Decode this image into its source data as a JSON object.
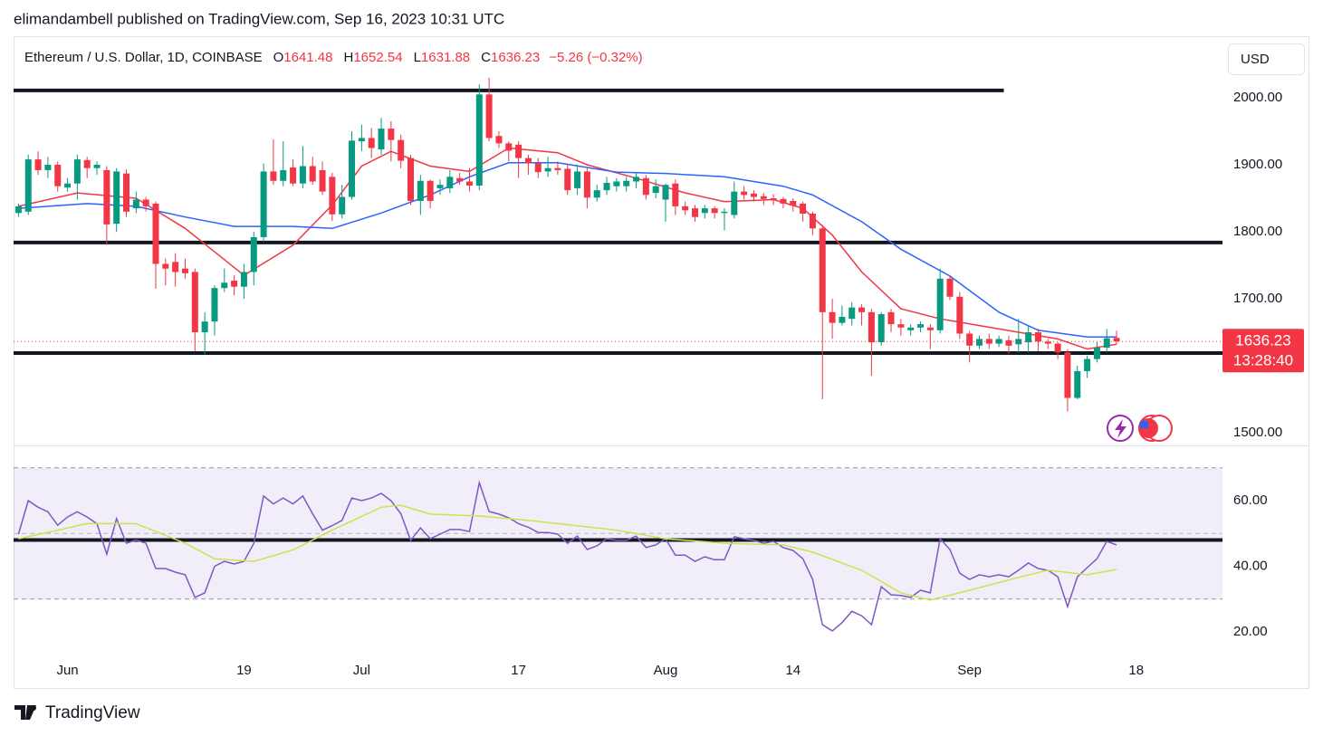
{
  "header": {
    "published": "elimandambell published on TradingView.com, Sep 16, 2023 10:31 UTC"
  },
  "footer": {
    "brand": "TradingView"
  },
  "chart_data": [
    {
      "type": "candlestick",
      "title": "Ethereum / U.S. Dollar, 1D, COINBASE",
      "ohlc_labels": [
        "O",
        "H",
        "L",
        "C"
      ],
      "change_label": "−5.26 (−0.32%)",
      "currency": "USD",
      "countdown": "13:28:40",
      "up_color": "#089981",
      "down_color": "#f23645",
      "open": [
        1828,
        1830,
        1908,
        1892,
        1900,
        1866,
        1872,
        1907,
        1895,
        1892,
        1812,
        1887,
        1835,
        1848,
        1842,
        1752,
        1755,
        1745,
        1740,
        1650,
        1666,
        1716,
        1727,
        1718,
        1740,
        1792,
        1890,
        1876,
        1896,
        1872,
        1898,
        1892,
        1882,
        1826,
        1852,
        1935,
        1940,
        1923,
        1954,
        1937,
        1910,
        1846,
        1876,
        1865,
        1865,
        1880,
        1875,
        1869,
        2005,
        1943,
        1932,
        1930,
        1910,
        1902,
        1890,
        1895,
        1894,
        1865,
        1890,
        1851,
        1862,
        1868,
        1868,
        1875,
        1880,
        1858,
        1848,
        1872,
        1838,
        1835,
        1828,
        1835,
        1828,
        1825,
        1860,
        1857,
        1853,
        1850,
        1849,
        1846,
        1842,
        1827,
        1805,
        1680,
        1664,
        1670,
        1687,
        1680,
        1635,
        1680,
        1662,
        1653,
        1657,
        1657,
        1653,
        1730,
        1703,
        1648,
        1630,
        1640,
        1633,
        1638,
        1632,
        1635,
        1650,
        1636,
        1633,
        1620,
        1552,
        1592,
        1610,
        1627,
        1641.48
      ],
      "high": [
        1842,
        1915,
        1920,
        1912,
        1905,
        1880,
        1915,
        1912,
        1905,
        1898,
        1895,
        1893,
        1860,
        1852,
        1845,
        1760,
        1768,
        1760,
        1745,
        1680,
        1720,
        1745,
        1735,
        1752,
        1800,
        1902,
        1938,
        1935,
        1908,
        1928,
        1912,
        1905,
        1888,
        1870,
        1950,
        1960,
        1955,
        1970,
        1965,
        1945,
        1915,
        1885,
        1878,
        1878,
        1892,
        1888,
        1895,
        2020,
        2030,
        1950,
        1935,
        1935,
        1915,
        1910,
        1912,
        1905,
        1902,
        1900,
        1895,
        1870,
        1882,
        1880,
        1882,
        1888,
        1885,
        1878,
        1872,
        1878,
        1845,
        1840,
        1840,
        1838,
        1835,
        1875,
        1868,
        1862,
        1858,
        1856,
        1852,
        1850,
        1845,
        1830,
        1810,
        1700,
        1690,
        1695,
        1692,
        1685,
        1680,
        1685,
        1670,
        1662,
        1666,
        1662,
        1745,
        1735,
        1710,
        1652,
        1645,
        1648,
        1645,
        1645,
        1670,
        1660,
        1655,
        1640,
        1635,
        1625,
        1600,
        1615,
        1635,
        1655,
        1652.54
      ],
      "low": [
        1822,
        1825,
        1885,
        1880,
        1860,
        1860,
        1848,
        1880,
        1885,
        1780,
        1800,
        1822,
        1828,
        1830,
        1715,
        1720,
        1718,
        1730,
        1622,
        1617,
        1645,
        1710,
        1705,
        1700,
        1720,
        1785,
        1870,
        1868,
        1868,
        1865,
        1870,
        1855,
        1816,
        1820,
        1848,
        1920,
        1910,
        1915,
        1905,
        1895,
        1840,
        1825,
        1835,
        1855,
        1858,
        1870,
        1860,
        1862,
        1935,
        1925,
        1905,
        1880,
        1885,
        1880,
        1882,
        1885,
        1855,
        1855,
        1835,
        1845,
        1855,
        1860,
        1860,
        1865,
        1848,
        1850,
        1815,
        1825,
        1825,
        1815,
        1820,
        1820,
        1802,
        1820,
        1848,
        1845,
        1840,
        1840,
        1835,
        1830,
        1815,
        1795,
        1550,
        1640,
        1660,
        1660,
        1660,
        1585,
        1630,
        1650,
        1645,
        1645,
        1650,
        1625,
        1648,
        1698,
        1640,
        1605,
        1625,
        1625,
        1628,
        1618,
        1620,
        1620,
        1622,
        1625,
        1610,
        1532,
        1550,
        1582,
        1605,
        1620,
        1631.88
      ],
      "close": [
        1838,
        1908,
        1892,
        1900,
        1868,
        1872,
        1908,
        1895,
        1900,
        1811,
        1890,
        1830,
        1848,
        1838,
        1752,
        1745,
        1740,
        1738,
        1650,
        1666,
        1716,
        1724,
        1718,
        1740,
        1792,
        1890,
        1876,
        1892,
        1872,
        1898,
        1875,
        1860,
        1826,
        1852,
        1936,
        1940,
        1925,
        1954,
        1937,
        1906,
        1846,
        1876,
        1846,
        1870,
        1882,
        1875,
        1869,
        2005,
        1940,
        1932,
        1921,
        1910,
        1902,
        1889,
        1895,
        1892,
        1862,
        1890,
        1851,
        1862,
        1873,
        1875,
        1876,
        1882,
        1855,
        1868,
        1870,
        1838,
        1832,
        1822,
        1835,
        1828,
        1830,
        1860,
        1855,
        1852,
        1849,
        1847,
        1842,
        1839,
        1827,
        1805,
        1680,
        1664,
        1673,
        1687,
        1680,
        1635,
        1677,
        1662,
        1657,
        1657,
        1662,
        1653,
        1730,
        1703,
        1648,
        1630,
        1640,
        1633,
        1640,
        1630,
        1640,
        1650,
        1636,
        1633,
        1620,
        1552,
        1592,
        1610,
        1627,
        1641,
        1636.23
      ],
      "series": [
        {
          "color": "#f23645",
          "x": [
            0,
            6,
            12,
            17,
            20,
            23,
            28,
            32,
            35,
            38,
            42,
            46,
            50,
            55,
            58,
            63,
            68,
            72,
            77,
            80,
            83,
            86,
            90,
            94,
            98,
            102,
            106,
            109,
            112
          ],
          "values": [
            1838,
            1858,
            1850,
            1805,
            1770,
            1735,
            1780,
            1840,
            1898,
            1920,
            1898,
            1890,
            1925,
            1918,
            1900,
            1880,
            1858,
            1845,
            1848,
            1835,
            1795,
            1740,
            1685,
            1670,
            1660,
            1650,
            1640,
            1625,
            1632
          ]
        },
        {
          "color": "#2962ff",
          "x": [
            0,
            7,
            12,
            17,
            22,
            28,
            32,
            37,
            42,
            46,
            50,
            55,
            61,
            66,
            72,
            78,
            81,
            86,
            90,
            95,
            100,
            104,
            109,
            112
          ],
          "values": [
            1835,
            1842,
            1838,
            1822,
            1808,
            1808,
            1805,
            1828,
            1855,
            1882,
            1903,
            1903,
            1889,
            1887,
            1882,
            1868,
            1855,
            1815,
            1774,
            1734,
            1680,
            1653,
            1643,
            1643
          ]
        }
      ],
      "levels": [
        {
          "value": 2011,
          "x_end": 100.5
        },
        {
          "value": 1784
        },
        {
          "value": 1619
        }
      ],
      "level_color": "#131722",
      "xlim": [
        -0.5,
        122.8
      ],
      "xticks": [
        {
          "value": 5,
          "label": "Jun"
        },
        {
          "value": 23,
          "label": "19"
        },
        {
          "value": 35,
          "label": "Jul"
        },
        {
          "value": 51,
          "label": "17"
        },
        {
          "value": 66,
          "label": "Aug"
        },
        {
          "value": 79,
          "label": "14"
        },
        {
          "value": 97,
          "label": "Sep"
        },
        {
          "value": 114,
          "label": "18"
        }
      ],
      "ylim": [
        1481.1,
        2091.9
      ],
      "yticks": [
        {
          "value": 1500,
          "label": "1500.00"
        },
        {
          "value": 1600,
          "label": "1600.00"
        },
        {
          "value": 1700,
          "label": "1700.00"
        },
        {
          "value": 1800,
          "label": "1800.00"
        },
        {
          "value": 1900,
          "label": "1900.00"
        },
        {
          "value": 2000,
          "label": "2000.00"
        }
      ]
    },
    {
      "type": "line",
      "series": [
        {
          "color": "#7e57c2",
          "values": [
            49.8,
            60,
            58,
            56.6,
            52.5,
            55,
            56.6,
            55,
            53,
            43.7,
            54.5,
            47,
            48,
            47,
            39.3,
            39.3,
            38.2,
            37.4,
            30.5,
            31.9,
            40,
            41.5,
            40.7,
            41.5,
            47,
            61.4,
            59,
            60.8,
            59,
            61.4,
            56,
            51,
            52.4,
            54,
            60.8,
            60,
            60.8,
            62.2,
            60,
            56,
            47.9,
            51.7,
            48.4,
            49.8,
            51.2,
            51.2,
            50.6,
            65.5,
            56.7,
            55.9,
            54.8,
            53,
            51.9,
            50.3,
            50.3,
            49.8,
            47,
            49.2,
            45.1,
            46.2,
            48.4,
            47.9,
            47.9,
            49.2,
            45.7,
            46.5,
            48.4,
            43.4,
            43.4,
            41.5,
            42.9,
            42,
            42,
            49,
            48.4,
            47.9,
            47,
            47.6,
            45.7,
            44.8,
            42.3,
            36,
            22.2,
            20.3,
            22.8,
            26.3,
            24.9,
            22.2,
            33.8,
            31.3,
            31.1,
            30.5,
            32.7,
            31.9,
            48.4,
            45.1,
            37.9,
            36,
            37.4,
            36.8,
            37.4,
            36.8,
            38.8,
            41,
            39.3,
            38.8,
            36.8,
            27.7,
            36.8,
            39.6,
            42.3,
            47.6,
            46.5
          ]
        },
        {
          "color": "#c8e64c",
          "x": [
            0,
            4,
            7,
            12,
            17,
            20,
            24,
            28,
            32,
            37,
            39,
            42,
            47,
            52,
            55,
            61,
            66,
            72,
            78,
            81,
            86,
            90,
            93,
            97,
            102,
            105,
            109,
            112
          ],
          "values": [
            48.4,
            51,
            53,
            53,
            47,
            42.3,
            41.5,
            45,
            51,
            58,
            58.6,
            55.9,
            55.3,
            54,
            53,
            51,
            48.4,
            47,
            46.5,
            44.3,
            38.8,
            31.9,
            29.7,
            32.7,
            36.6,
            38.8,
            37.4,
            39
          ]
        }
      ],
      "band": [
        30,
        70
      ],
      "mid": 50,
      "band_color": "#7e57c2",
      "levels": [
        {
          "value": 48
        }
      ],
      "level_color": "#131722",
      "xlim": [
        -0.5,
        122.8
      ],
      "ylim": [
        13.93,
        76.83
      ],
      "yticks": [
        {
          "value": 20,
          "label": "20.00"
        },
        {
          "value": 40,
          "label": "40.00"
        },
        {
          "value": 60,
          "label": "60.00"
        }
      ]
    }
  ]
}
